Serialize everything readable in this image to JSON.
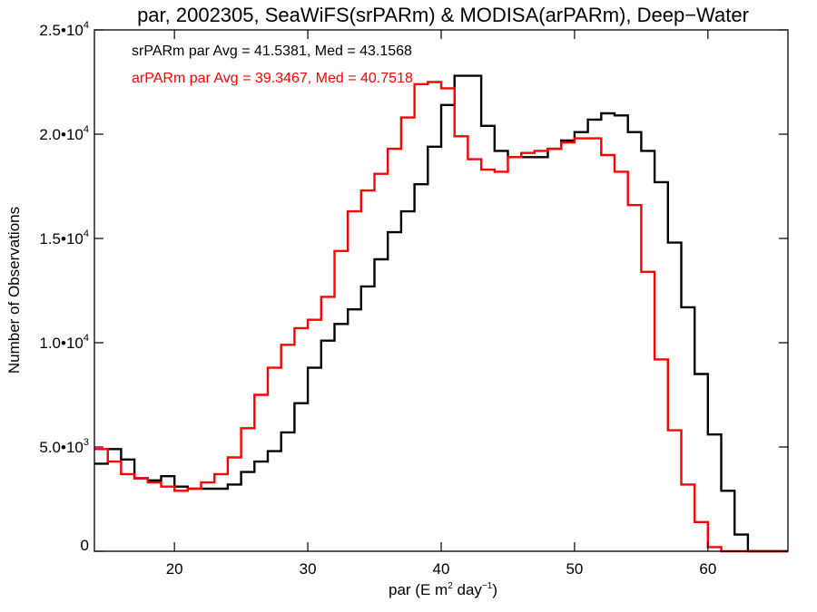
{
  "chart_data": {
    "type": "line",
    "step": true,
    "title": "par, 2002305, SeaWiFS(srPARm) & MODISA(arPARm), Deep−Water",
    "xlabel": "par (E m",
    "xlabel_sup1": "2",
    "xlabel_mid": " day",
    "xlabel_sup2": "−1",
    "xlabel_end": ")",
    "ylabel": "Number of Observations",
    "xlim": [
      14,
      66
    ],
    "ylim": [
      0,
      25000
    ],
    "grid": false,
    "x_ticks": [
      {
        "value": 20,
        "label": "20"
      },
      {
        "value": 30,
        "label": "30"
      },
      {
        "value": 40,
        "label": "40"
      },
      {
        "value": 50,
        "label": "50"
      },
      {
        "value": 60,
        "label": "60"
      }
    ],
    "y_ticks": [
      {
        "value": 0,
        "mantissa": "0",
        "exp": ""
      },
      {
        "value": 5000,
        "mantissa": "5.0•10",
        "exp": "3"
      },
      {
        "value": 10000,
        "mantissa": "1.0•10",
        "exp": "4"
      },
      {
        "value": 15000,
        "mantissa": "1.5•10",
        "exp": "4"
      },
      {
        "value": 20000,
        "mantissa": "2.0•10",
        "exp": "4"
      },
      {
        "value": 25000,
        "mantissa": "2.5•10",
        "exp": "4"
      }
    ],
    "annotations": [
      {
        "text": "srPARm par Avg = 41.5381, Med = 43.1568",
        "color": "#000000"
      },
      {
        "text": "arPARm par Avg = 39.3467, Med = 40.7518",
        "color": "#ff0000"
      }
    ],
    "series": [
      {
        "color": "#000000",
        "points": [
          [
            14,
            4200
          ],
          [
            15,
            4900
          ],
          [
            16,
            4400
          ],
          [
            17,
            3500
          ],
          [
            18,
            3400
          ],
          [
            19,
            3600
          ],
          [
            20,
            3100
          ],
          [
            21,
            3000
          ],
          [
            22,
            3000
          ],
          [
            23,
            3000
          ],
          [
            24,
            3200
          ],
          [
            25,
            3800
          ],
          [
            26,
            4300
          ],
          [
            27,
            4800
          ],
          [
            28,
            5700
          ],
          [
            29,
            7100
          ],
          [
            30,
            8800
          ],
          [
            31,
            10100
          ],
          [
            32,
            10900
          ],
          [
            33,
            11600
          ],
          [
            34,
            12700
          ],
          [
            35,
            14000
          ],
          [
            36,
            15300
          ],
          [
            37,
            16300
          ],
          [
            38,
            17600
          ],
          [
            39,
            19400
          ],
          [
            40,
            21400
          ],
          [
            41,
            22800
          ],
          [
            42,
            22800
          ],
          [
            43,
            20400
          ],
          [
            44,
            19200
          ],
          [
            45,
            18900
          ],
          [
            46,
            18900
          ],
          [
            47,
            18900
          ],
          [
            48,
            19300
          ],
          [
            49,
            19700
          ],
          [
            50,
            20100
          ],
          [
            51,
            20700
          ],
          [
            52,
            21000
          ],
          [
            53,
            20900
          ],
          [
            54,
            20100
          ],
          [
            55,
            19200
          ],
          [
            56,
            17700
          ],
          [
            57,
            14800
          ],
          [
            58,
            11700
          ],
          [
            59,
            8500
          ],
          [
            60,
            5600
          ],
          [
            61,
            2900
          ],
          [
            62,
            800
          ],
          [
            63,
            0
          ],
          [
            66,
            0
          ]
        ]
      },
      {
        "color": "#ff0000",
        "points": [
          [
            14,
            4900
          ],
          [
            15,
            4300
          ],
          [
            16,
            3700
          ],
          [
            17,
            3500
          ],
          [
            18,
            3300
          ],
          [
            19,
            3100
          ],
          [
            20,
            2900
          ],
          [
            21,
            3000
          ],
          [
            22,
            3300
          ],
          [
            23,
            3700
          ],
          [
            24,
            4500
          ],
          [
            25,
            5900
          ],
          [
            26,
            7500
          ],
          [
            27,
            8800
          ],
          [
            28,
            9900
          ],
          [
            29,
            10700
          ],
          [
            30,
            11100
          ],
          [
            31,
            12200
          ],
          [
            32,
            14400
          ],
          [
            33,
            16300
          ],
          [
            34,
            17300
          ],
          [
            35,
            18100
          ],
          [
            36,
            19300
          ],
          [
            37,
            20800
          ],
          [
            38,
            22400
          ],
          [
            39,
            22500
          ],
          [
            40,
            22200
          ],
          [
            41,
            19900
          ],
          [
            42,
            18800
          ],
          [
            43,
            18300
          ],
          [
            44,
            18200
          ],
          [
            45,
            18900
          ],
          [
            46,
            19100
          ],
          [
            47,
            19200
          ],
          [
            48,
            19300
          ],
          [
            49,
            19600
          ],
          [
            50,
            19800
          ],
          [
            51,
            19800
          ],
          [
            52,
            19000
          ],
          [
            53,
            18200
          ],
          [
            54,
            16600
          ],
          [
            55,
            13400
          ],
          [
            56,
            9200
          ],
          [
            57,
            5800
          ],
          [
            58,
            3200
          ],
          [
            59,
            1400
          ],
          [
            60,
            200
          ],
          [
            61,
            0
          ],
          [
            66,
            0
          ]
        ]
      }
    ]
  }
}
